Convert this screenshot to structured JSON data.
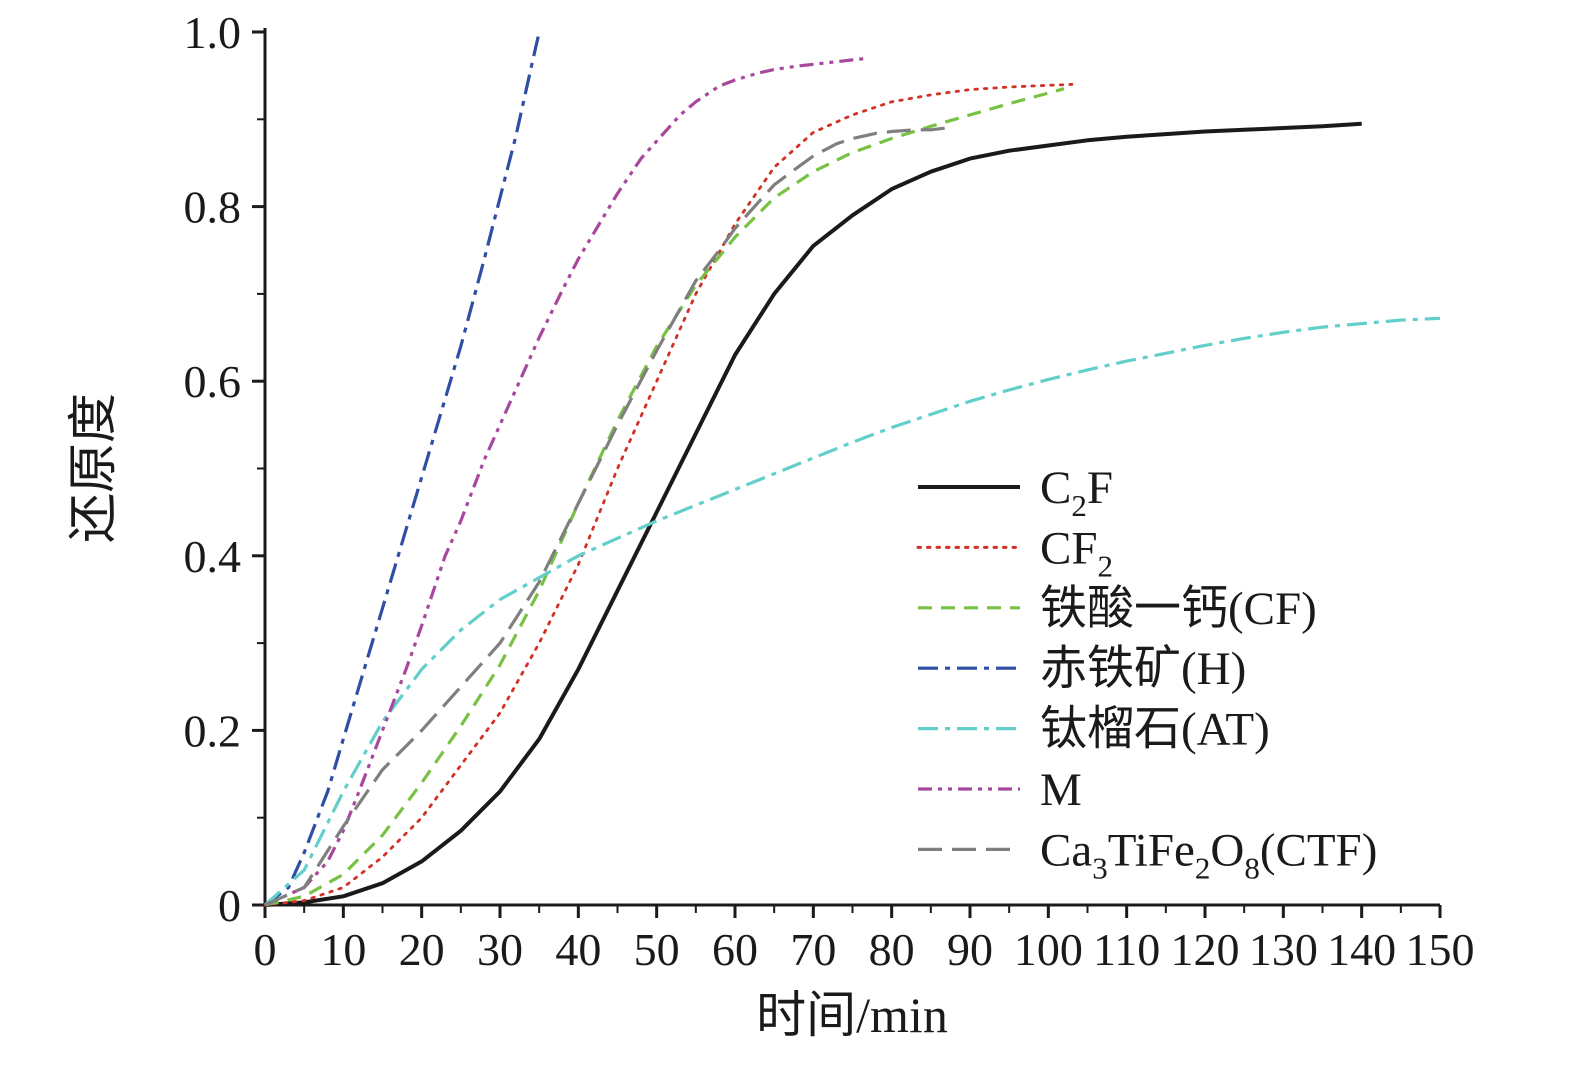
{
  "chart_data": {
    "type": "line",
    "title": "",
    "xlabel": "时间/min",
    "ylabel": "还原度",
    "xlim": [
      0,
      150
    ],
    "ylim": [
      0,
      1.0
    ],
    "x_ticks": [
      0,
      10,
      20,
      30,
      40,
      50,
      60,
      70,
      80,
      90,
      100,
      110,
      120,
      130,
      140,
      150
    ],
    "x_minor_step": 5,
    "y_ticks": [
      0,
      0.2,
      0.4,
      0.6,
      0.8,
      1.0
    ],
    "y_tick_labels": [
      "0",
      "0.2",
      "0.4",
      "0.6",
      "0.8",
      "1.0"
    ],
    "y_minor_step": 0.1,
    "grid": false,
    "legend_position": "inside-right-middle",
    "series": [
      {
        "name": "C₂F",
        "color": "#1a1a1a",
        "line_style": "solid",
        "width": 4,
        "points": [
          [
            0,
            0
          ],
          [
            5,
            0.003
          ],
          [
            10,
            0.01
          ],
          [
            15,
            0.025
          ],
          [
            20,
            0.05
          ],
          [
            25,
            0.085
          ],
          [
            30,
            0.13
          ],
          [
            35,
            0.19
          ],
          [
            40,
            0.27
          ],
          [
            45,
            0.36
          ],
          [
            50,
            0.45
          ],
          [
            55,
            0.54
          ],
          [
            60,
            0.63
          ],
          [
            65,
            0.7
          ],
          [
            70,
            0.755
          ],
          [
            75,
            0.79
          ],
          [
            80,
            0.82
          ],
          [
            85,
            0.84
          ],
          [
            90,
            0.855
          ],
          [
            95,
            0.864
          ],
          [
            100,
            0.87
          ],
          [
            105,
            0.876
          ],
          [
            110,
            0.88
          ],
          [
            115,
            0.883
          ],
          [
            120,
            0.886
          ],
          [
            125,
            0.888
          ],
          [
            130,
            0.89
          ],
          [
            135,
            0.892
          ],
          [
            140,
            0.895
          ]
        ]
      },
      {
        "name": "CF₂",
        "color": "#d23126",
        "line_style": "dotted",
        "width": 2.8,
        "points": [
          [
            0,
            0
          ],
          [
            5,
            0.005
          ],
          [
            10,
            0.02
          ],
          [
            15,
            0.055
          ],
          [
            20,
            0.1
          ],
          [
            25,
            0.16
          ],
          [
            30,
            0.22
          ],
          [
            35,
            0.3
          ],
          [
            40,
            0.39
          ],
          [
            45,
            0.5
          ],
          [
            50,
            0.6
          ],
          [
            55,
            0.7
          ],
          [
            60,
            0.78
          ],
          [
            65,
            0.845
          ],
          [
            70,
            0.885
          ],
          [
            75,
            0.905
          ],
          [
            80,
            0.92
          ],
          [
            85,
            0.928
          ],
          [
            90,
            0.934
          ],
          [
            95,
            0.937
          ],
          [
            100,
            0.939
          ],
          [
            103,
            0.94
          ]
        ]
      },
      {
        "name": "铁酸一钙(CF)",
        "color": "#77c143",
        "line_style": "dashed",
        "width": 3.2,
        "points": [
          [
            0,
            0
          ],
          [
            5,
            0.01
          ],
          [
            10,
            0.035
          ],
          [
            15,
            0.08
          ],
          [
            20,
            0.14
          ],
          [
            25,
            0.205
          ],
          [
            30,
            0.275
          ],
          [
            35,
            0.36
          ],
          [
            40,
            0.46
          ],
          [
            45,
            0.555
          ],
          [
            50,
            0.64
          ],
          [
            55,
            0.71
          ],
          [
            60,
            0.765
          ],
          [
            65,
            0.81
          ],
          [
            70,
            0.84
          ],
          [
            75,
            0.862
          ],
          [
            80,
            0.878
          ],
          [
            85,
            0.892
          ],
          [
            90,
            0.905
          ],
          [
            95,
            0.918
          ],
          [
            100,
            0.93
          ],
          [
            102,
            0.935
          ]
        ]
      },
      {
        "name": "赤铁矿(H)",
        "color": "#2e4fa3",
        "line_style": "dash-dot",
        "width": 3.2,
        "points": [
          [
            0,
            0
          ],
          [
            3,
            0.02
          ],
          [
            5,
            0.06
          ],
          [
            8,
            0.13
          ],
          [
            10,
            0.19
          ],
          [
            13,
            0.28
          ],
          [
            15,
            0.34
          ],
          [
            18,
            0.43
          ],
          [
            20,
            0.49
          ],
          [
            23,
            0.58
          ],
          [
            25,
            0.64
          ],
          [
            28,
            0.74
          ],
          [
            30,
            0.81
          ],
          [
            32,
            0.88
          ],
          [
            34,
            0.96
          ],
          [
            35,
            1.0
          ]
        ]
      },
      {
        "name": "钛榴石(AT)",
        "color": "#63cfca",
        "line_style": "dash-dot",
        "width": 3.2,
        "points": [
          [
            0,
            0
          ],
          [
            5,
            0.04
          ],
          [
            10,
            0.13
          ],
          [
            15,
            0.21
          ],
          [
            20,
            0.27
          ],
          [
            25,
            0.315
          ],
          [
            30,
            0.35
          ],
          [
            35,
            0.375
          ],
          [
            40,
            0.4
          ],
          [
            45,
            0.42
          ],
          [
            50,
            0.44
          ],
          [
            55,
            0.458
          ],
          [
            60,
            0.476
          ],
          [
            65,
            0.494
          ],
          [
            70,
            0.512
          ],
          [
            75,
            0.53
          ],
          [
            80,
            0.547
          ],
          [
            85,
            0.562
          ],
          [
            90,
            0.577
          ],
          [
            95,
            0.59
          ],
          [
            100,
            0.602
          ],
          [
            105,
            0.613
          ],
          [
            110,
            0.623
          ],
          [
            115,
            0.632
          ],
          [
            120,
            0.641
          ],
          [
            125,
            0.649
          ],
          [
            130,
            0.656
          ],
          [
            135,
            0.662
          ],
          [
            140,
            0.666
          ],
          [
            145,
            0.67
          ],
          [
            150,
            0.672
          ]
        ]
      },
      {
        "name": "M",
        "color": "#a8479e",
        "line_style": "dash-dot-dot",
        "width": 3.2,
        "points": [
          [
            0,
            0
          ],
          [
            5,
            0.02
          ],
          [
            8,
            0.05
          ],
          [
            10,
            0.085
          ],
          [
            12,
            0.13
          ],
          [
            15,
            0.2
          ],
          [
            18,
            0.27
          ],
          [
            20,
            0.32
          ],
          [
            23,
            0.4
          ],
          [
            25,
            0.44
          ],
          [
            28,
            0.51
          ],
          [
            30,
            0.55
          ],
          [
            33,
            0.61
          ],
          [
            35,
            0.65
          ],
          [
            38,
            0.705
          ],
          [
            40,
            0.74
          ],
          [
            43,
            0.785
          ],
          [
            45,
            0.815
          ],
          [
            48,
            0.855
          ],
          [
            50,
            0.875
          ],
          [
            53,
            0.905
          ],
          [
            55,
            0.92
          ],
          [
            58,
            0.938
          ],
          [
            60,
            0.945
          ],
          [
            63,
            0.953
          ],
          [
            65,
            0.957
          ],
          [
            68,
            0.961
          ],
          [
            70,
            0.963
          ],
          [
            73,
            0.966
          ],
          [
            75,
            0.968
          ],
          [
            77,
            0.97
          ]
        ]
      },
      {
        "name": "Ca₃TiFe₂O₈(CTF)",
        "color": "#7f7f7f",
        "line_style": "long-dash",
        "width": 3.2,
        "points": [
          [
            0,
            0
          ],
          [
            5,
            0.02
          ],
          [
            10,
            0.09
          ],
          [
            15,
            0.155
          ],
          [
            20,
            0.2
          ],
          [
            25,
            0.25
          ],
          [
            30,
            0.3
          ],
          [
            35,
            0.37
          ],
          [
            40,
            0.46
          ],
          [
            45,
            0.55
          ],
          [
            50,
            0.635
          ],
          [
            55,
            0.715
          ],
          [
            58,
            0.75
          ],
          [
            60,
            0.775
          ],
          [
            63,
            0.805
          ],
          [
            65,
            0.825
          ],
          [
            68,
            0.845
          ],
          [
            70,
            0.858
          ],
          [
            73,
            0.872
          ],
          [
            75,
            0.878
          ],
          [
            78,
            0.884
          ],
          [
            80,
            0.886
          ],
          [
            83,
            0.888
          ],
          [
            85,
            0.888
          ],
          [
            87,
            0.89
          ]
        ]
      }
    ]
  }
}
